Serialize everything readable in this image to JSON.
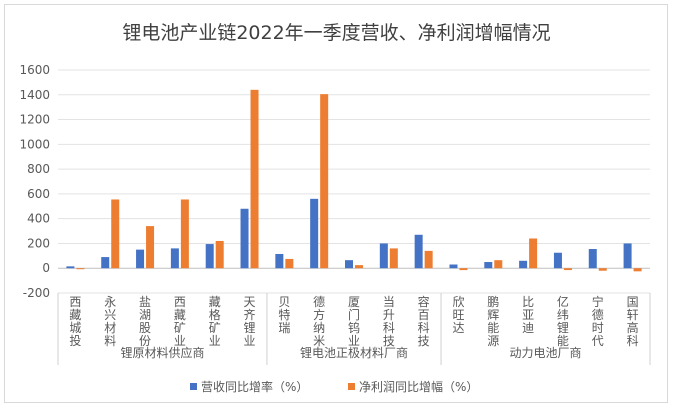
{
  "chart_data": {
    "type": "bar",
    "title": "锂电池产业链2022年一季度营收、净利润增幅情况",
    "ylim": [
      -200,
      1600
    ],
    "yticks": [
      -200,
      0,
      200,
      400,
      600,
      800,
      1000,
      1200,
      1400,
      1600
    ],
    "grid": true,
    "legend_position": "bottom",
    "categories": [
      "西藏城投",
      "永兴材料",
      "盐湖股份",
      "西藏矿业",
      "藏格矿业",
      "天齐锂业",
      "贝特瑞",
      "德方纳米",
      "厦门钨业",
      "当升科技",
      "容百科技",
      "欣旺达",
      "鹏辉能源",
      "比亚迪",
      "亿纬锂能",
      "宁德时代",
      "国轩高科"
    ],
    "groups": [
      {
        "name": "锂原材料供应商",
        "count": 6
      },
      {
        "name": "锂电池正极材料厂商",
        "count": 5
      },
      {
        "name": "动力电池厂商",
        "count": 6
      }
    ],
    "series": [
      {
        "name": "营收同比增率（%）",
        "color": "#4472c4",
        "values": [
          15,
          90,
          150,
          160,
          195,
          480,
          115,
          560,
          65,
          200,
          270,
          30,
          50,
          60,
          125,
          155,
          200
        ]
      },
      {
        "name": "净利润同比增幅（%）",
        "color": "#ed7d31",
        "values": [
          -5,
          555,
          340,
          555,
          220,
          1440,
          75,
          1405,
          25,
          160,
          140,
          -15,
          65,
          240,
          -15,
          -20,
          -25
        ]
      }
    ]
  }
}
